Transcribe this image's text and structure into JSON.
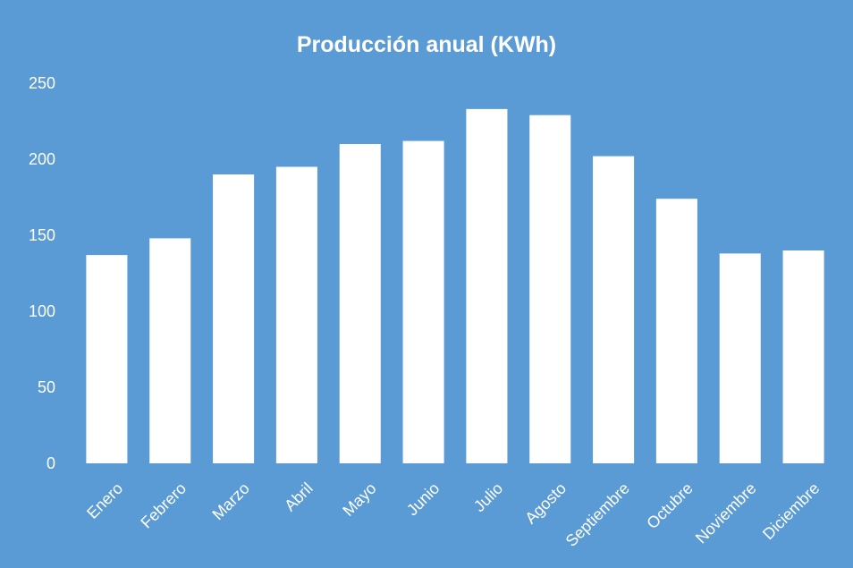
{
  "chart_data": {
    "type": "bar",
    "title": "Producción anual (KWh)",
    "xlabel": "",
    "ylabel": "",
    "categories": [
      "Enero",
      "Febrero",
      "Marzo",
      "Abril",
      "Mayo",
      "Junio",
      "Julio",
      "Agosto",
      "Septiembre",
      "Octubre",
      "Noviembre",
      "Diciembre"
    ],
    "values": [
      137,
      148,
      190,
      195,
      210,
      212,
      233,
      229,
      202,
      174,
      138,
      140
    ],
    "ylim": [
      0,
      250
    ],
    "yticks": [
      "0",
      "50",
      "100",
      "150",
      "200",
      "250"
    ],
    "grid": false,
    "legend": "none",
    "colors": {
      "background": "#5b9bd5",
      "bar": "#ffffff",
      "text": "#ffffff"
    }
  }
}
